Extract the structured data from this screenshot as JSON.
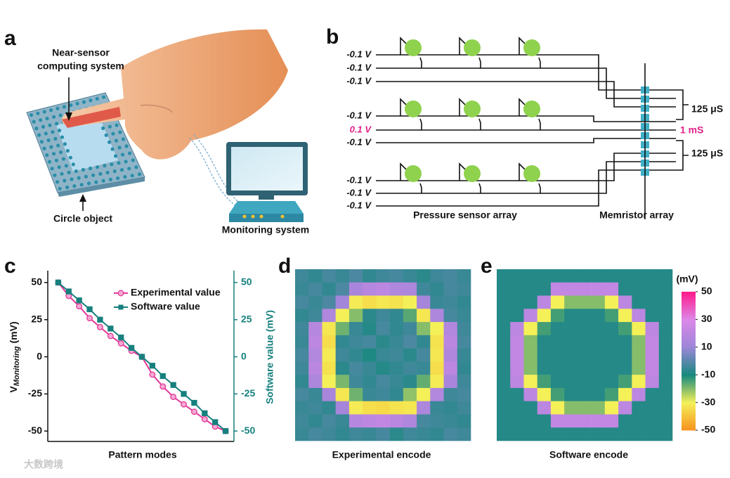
{
  "panels": {
    "a": "a",
    "b": "b",
    "c": "c",
    "d": "d",
    "e": "e"
  },
  "a": {
    "sensor_label": [
      "Near-sensor",
      "computing system"
    ],
    "object_label": "Circle object",
    "monitor_label": "Monitoring system"
  },
  "b": {
    "voltages": [
      "-0.1 V",
      "-0.1 V",
      "-0.1 V",
      "-0.1 V",
      "0.1 V",
      "-0.1 V",
      "-0.1 V",
      "-0.1 V",
      "-0.1 V"
    ],
    "conductances": [
      "125 μS",
      "1 mS",
      "125 μS"
    ],
    "sensor_label": "Pressure sensor array",
    "memristor_label": "Memristor array"
  },
  "chart_data": [
    {
      "type": "line",
      "xlabel": "Pattern modes",
      "ylabel": {
        "main": "V",
        "sub": "Monitoring",
        "unit": "(mV)"
      },
      "y2label": "Software value (mV)",
      "x": [
        1,
        2,
        3,
        4,
        5,
        6,
        7,
        8,
        9,
        10,
        11,
        12,
        13,
        14,
        15,
        16,
        17
      ],
      "xlim": [
        0,
        17.8
      ],
      "ylim": [
        -57,
        58
      ],
      "yticks": [
        50,
        25,
        0,
        -25,
        -50
      ],
      "y2lim": [
        -57,
        58
      ],
      "y2ticks": [
        50,
        25,
        0,
        -25,
        -50
      ],
      "legend": "upper right",
      "series": [
        {
          "name": "Experimental value",
          "color": "#e2389a",
          "marker": "circle",
          "values": [
            50,
            41,
            34,
            26,
            20,
            14,
            9,
            4,
            0,
            -12,
            -20,
            -27,
            -32,
            -37,
            -42,
            -47,
            -50
          ]
        },
        {
          "name": "Software value",
          "color": "#16807e",
          "marker": "square",
          "axis": "y2",
          "values": [
            50,
            44,
            38,
            32,
            25,
            19,
            13,
            6,
            0,
            -6,
            -13,
            -19,
            -25,
            -31,
            -38,
            -44,
            -50
          ]
        }
      ]
    },
    {
      "type": "heatmap",
      "xlabel": "Experimental encode",
      "values": [
        [
          -4,
          -6,
          -3,
          -5,
          -2,
          -6,
          -4,
          -3,
          -5,
          -7,
          -4,
          -3,
          -5
        ],
        [
          -5,
          -3,
          -6,
          -2,
          14,
          18,
          20,
          16,
          15,
          -4,
          -6,
          -3,
          -4
        ],
        [
          -3,
          -5,
          -2,
          12,
          -31,
          -34,
          -32,
          -33,
          -30,
          13,
          -5,
          -4,
          -6
        ],
        [
          -6,
          -4,
          16,
          -30,
          -20,
          -7,
          -4,
          -6,
          -16,
          -32,
          15,
          -3,
          -5
        ],
        [
          -4,
          18,
          -32,
          -18,
          -5,
          -8,
          -3,
          -6,
          -4,
          -20,
          -30,
          17,
          -4
        ],
        [
          -5,
          20,
          -34,
          -6,
          -4,
          -3,
          -7,
          -5,
          -2,
          -6,
          -33,
          19,
          -3
        ],
        [
          -3,
          17,
          -31,
          -4,
          -6,
          -9,
          -5,
          -4,
          -7,
          -3,
          -32,
          16,
          -5
        ],
        [
          -4,
          19,
          -33,
          -7,
          -3,
          -5,
          -8,
          -6,
          -4,
          -5,
          -34,
          20,
          -6
        ],
        [
          -6,
          15,
          -30,
          -19,
          -4,
          -6,
          -3,
          -5,
          -7,
          -17,
          -31,
          14,
          -4
        ],
        [
          -3,
          -5,
          14,
          -32,
          -18,
          -5,
          -4,
          -6,
          -21,
          -30,
          17,
          -4,
          -3
        ],
        [
          -5,
          -4,
          -6,
          13,
          -31,
          -34,
          -35,
          -33,
          -32,
          15,
          -5,
          -6,
          -4
        ],
        [
          -4,
          -6,
          -3,
          -5,
          18,
          20,
          22,
          19,
          16,
          -3,
          -4,
          -5,
          -6
        ],
        [
          -5,
          -3,
          -4,
          -6,
          -4,
          -5,
          -3,
          -7,
          -4,
          -5,
          -6,
          -3,
          -4
        ]
      ]
    },
    {
      "type": "heatmap",
      "xlabel": "Software encode",
      "values": [
        [
          -8,
          -8,
          -8,
          -8,
          -8,
          -8,
          -8,
          -8,
          -8,
          -8,
          -8,
          -8,
          -8
        ],
        [
          -8,
          -8,
          -8,
          -8,
          22,
          22,
          22,
          22,
          22,
          -8,
          -8,
          -8,
          -8
        ],
        [
          -8,
          -8,
          -8,
          20,
          -30,
          -20,
          -20,
          -20,
          -30,
          20,
          -8,
          -8,
          -8
        ],
        [
          -8,
          -8,
          20,
          -30,
          -14,
          -8,
          -8,
          -8,
          -14,
          -30,
          20,
          -8,
          -8
        ],
        [
          -8,
          20,
          -30,
          -14,
          -8,
          -8,
          -8,
          -8,
          -8,
          -14,
          -30,
          20,
          -8
        ],
        [
          -8,
          22,
          -20,
          -8,
          -8,
          -8,
          -8,
          -8,
          -8,
          -8,
          -20,
          22,
          -8
        ],
        [
          -8,
          22,
          -20,
          -8,
          -8,
          -8,
          -8,
          -8,
          -8,
          -8,
          -20,
          22,
          -8
        ],
        [
          -8,
          22,
          -20,
          -8,
          -8,
          -8,
          -8,
          -8,
          -8,
          -8,
          -20,
          22,
          -8
        ],
        [
          -8,
          20,
          -30,
          -14,
          -8,
          -8,
          -8,
          -8,
          -8,
          -14,
          -30,
          20,
          -8
        ],
        [
          -8,
          -8,
          20,
          -30,
          -14,
          -8,
          -8,
          -8,
          -14,
          -30,
          20,
          -8,
          -8
        ],
        [
          -8,
          -8,
          -8,
          20,
          -30,
          -20,
          -20,
          -20,
          -30,
          20,
          -8,
          -8,
          -8
        ],
        [
          -8,
          -8,
          -8,
          -8,
          22,
          22,
          22,
          22,
          22,
          -8,
          -8,
          -8,
          -8
        ],
        [
          -8,
          -8,
          -8,
          -8,
          -8,
          -8,
          -8,
          -8,
          -8,
          -8,
          -8,
          -8,
          -8
        ]
      ]
    }
  ],
  "colorbar": {
    "label": "(mV)",
    "ticks": [
      50,
      30,
      10,
      -10,
      -30,
      -50
    ],
    "colors": [
      "#ff1a8c",
      "#dc88e8",
      "#9c86d8",
      "#17897e",
      "#f4f058",
      "#f7921d"
    ]
  },
  "watermark": "大数跨境"
}
